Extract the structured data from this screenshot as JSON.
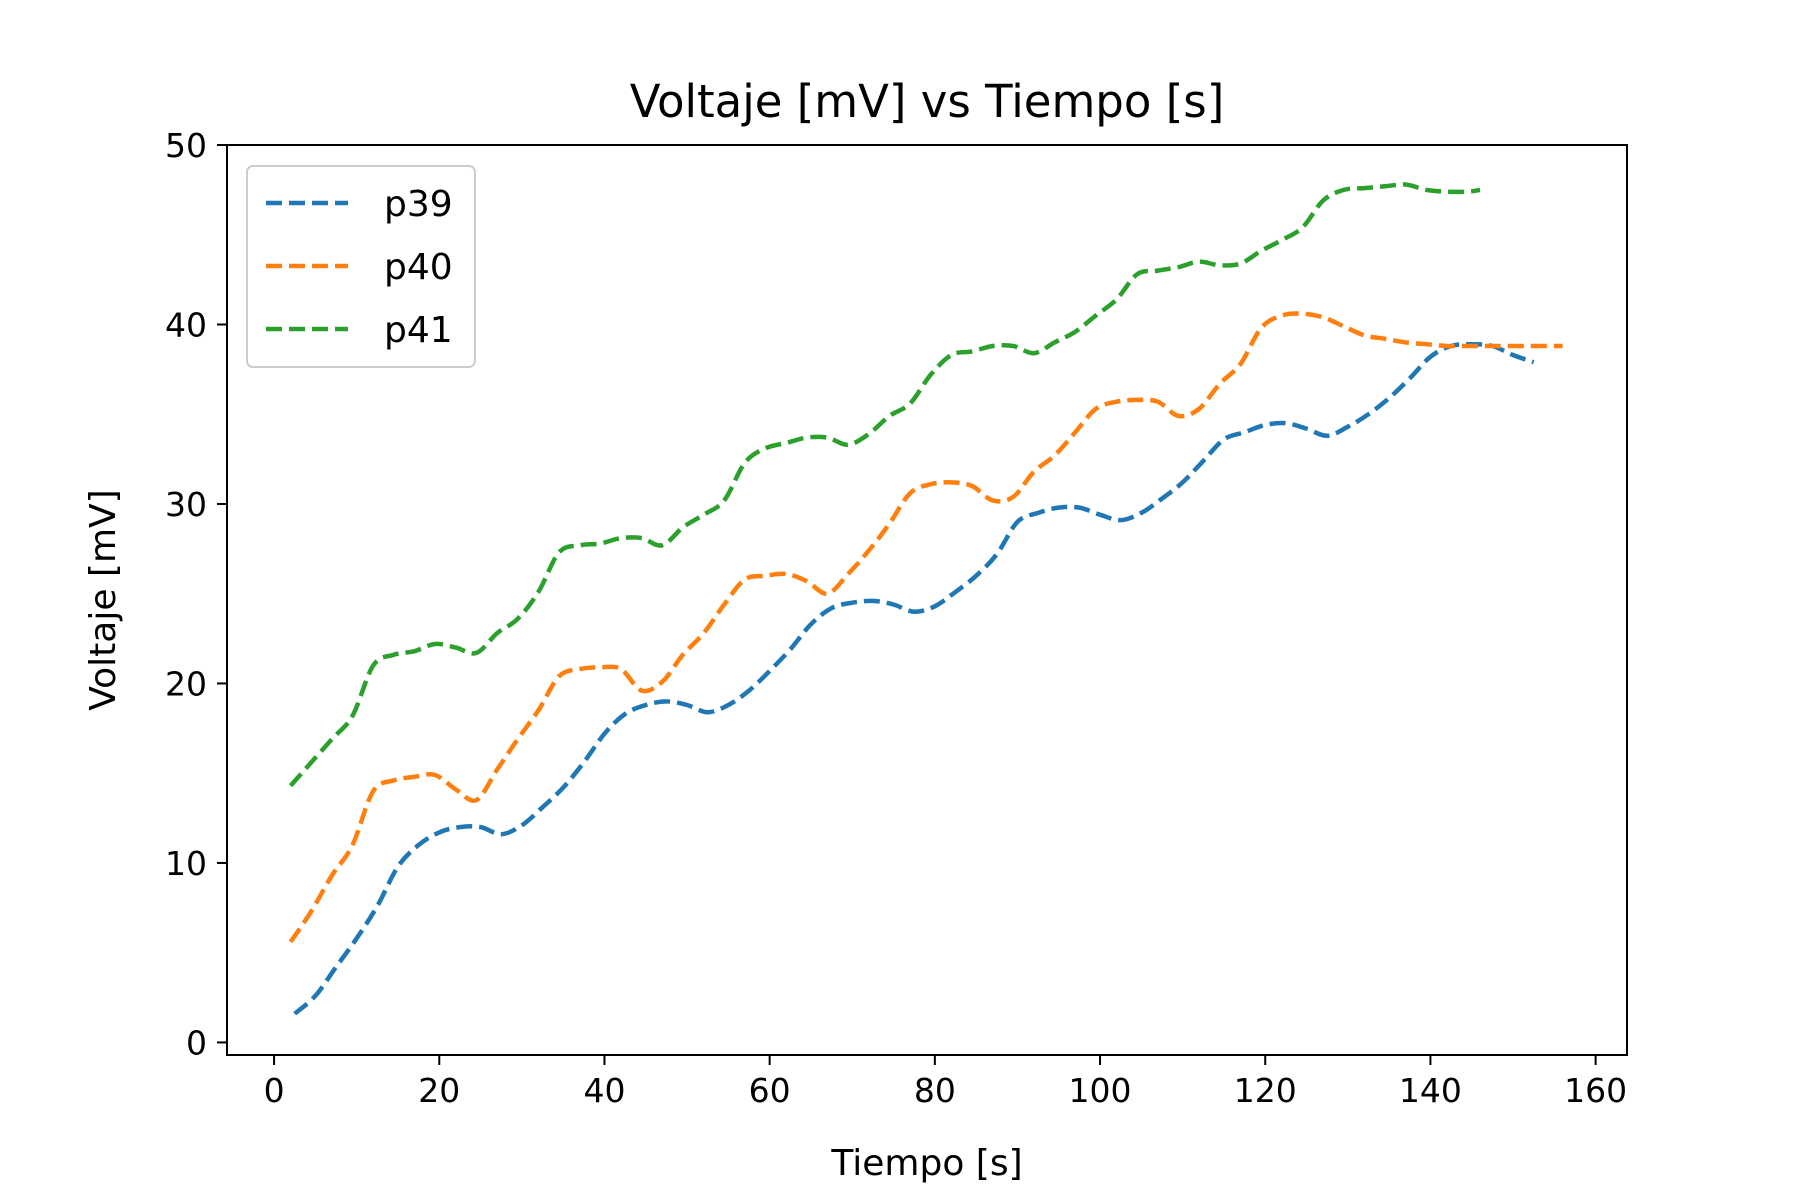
{
  "chart_data": {
    "type": "line",
    "title": "Voltaje [mV] vs Tiempo [s]",
    "xlabel": "Tiempo [s]",
    "ylabel": "Voltaje [mV]",
    "xlim": [
      -5.7,
      163.8
    ],
    "ylim": [
      -0.7,
      50.0
    ],
    "xticks": [
      0,
      20,
      40,
      60,
      80,
      100,
      120,
      140,
      160
    ],
    "yticks": [
      0,
      10,
      20,
      30,
      40,
      50
    ],
    "grid": false,
    "legend_position": "top-left",
    "line_style": "dashed",
    "series": [
      {
        "name": "p39",
        "color": "#1f77b4",
        "x": [
          2.5,
          5,
          7.5,
          10,
          12.5,
          15,
          17.5,
          20,
          22.5,
          25,
          27.5,
          30,
          32.5,
          35,
          37.5,
          40,
          42.5,
          45,
          47.5,
          50,
          52.5,
          55,
          57.5,
          60,
          62.5,
          65,
          67.5,
          70,
          72.5,
          75,
          77.5,
          80,
          82.5,
          85,
          87.5,
          90,
          92.5,
          95,
          97.5,
          100,
          102.5,
          105,
          107.5,
          110,
          112.5,
          115,
          117.5,
          120,
          122.5,
          125,
          127.5,
          130,
          132.5,
          135,
          137.5,
          140,
          142.5,
          145,
          147.5,
          150,
          152.5
        ],
        "y": [
          1.6,
          2.6,
          4.2,
          5.8,
          7.6,
          9.8,
          11.0,
          11.7,
          12.0,
          12.0,
          11.6,
          12.1,
          13.1,
          14.2,
          15.6,
          17.2,
          18.3,
          18.8,
          19.0,
          18.8,
          18.4,
          18.8,
          19.6,
          20.7,
          21.9,
          23.3,
          24.2,
          24.5,
          24.6,
          24.4,
          24.0,
          24.3,
          25.1,
          26.0,
          27.2,
          29.0,
          29.5,
          29.8,
          29.8,
          29.4,
          29.1,
          29.5,
          30.3,
          31.2,
          32.4,
          33.6,
          34.0,
          34.4,
          34.5,
          34.2,
          33.8,
          34.3,
          35.0,
          35.9,
          37.0,
          38.2,
          38.8,
          38.9,
          38.8,
          38.3,
          37.9
        ]
      },
      {
        "name": "p40",
        "color": "#ff7f0e",
        "x": [
          2,
          4.5,
          7,
          9.5,
          12,
          14.5,
          17,
          19.5,
          22,
          24.5,
          27,
          29.5,
          32,
          34.5,
          37,
          39.5,
          42,
          44.5,
          47,
          49.5,
          52,
          54.5,
          57,
          59.5,
          62,
          64.5,
          67,
          69.5,
          72,
          74.5,
          77,
          79.5,
          82,
          84.5,
          87,
          89.5,
          92,
          94.5,
          97,
          99.5,
          102,
          104.5,
          107,
          109.5,
          112,
          114.5,
          117,
          119.5,
          122,
          124.5,
          127,
          129.5,
          132,
          134.5,
          137,
          139.5,
          142,
          144.5,
          147,
          149.5,
          152,
          154.5,
          156
        ],
        "y": [
          5.6,
          7.3,
          9.3,
          11.0,
          14.0,
          14.6,
          14.8,
          14.9,
          14.1,
          13.5,
          15.2,
          16.9,
          18.5,
          20.4,
          20.8,
          20.9,
          20.8,
          19.6,
          20.1,
          21.6,
          22.8,
          24.4,
          25.8,
          26.0,
          26.1,
          25.7,
          25.0,
          26.1,
          27.4,
          28.9,
          30.6,
          31.1,
          31.2,
          31.0,
          30.2,
          30.4,
          31.8,
          32.7,
          34.0,
          35.3,
          35.7,
          35.8,
          35.7,
          34.9,
          35.3,
          36.7,
          37.8,
          39.8,
          40.5,
          40.6,
          40.4,
          39.9,
          39.4,
          39.2,
          39.0,
          38.9,
          38.8,
          38.8,
          38.8,
          38.8,
          38.8,
          38.8,
          38.8
        ]
      },
      {
        "name": "p41",
        "color": "#2ca02c",
        "x": [
          2,
          4.5,
          7,
          9.5,
          12,
          14.5,
          17,
          19.5,
          22,
          24.5,
          27,
          29.5,
          32,
          34.5,
          37,
          39.5,
          42,
          44.5,
          47,
          49.5,
          52,
          54.5,
          57,
          59.5,
          62,
          64.5,
          67,
          69.5,
          72,
          74.5,
          77,
          79.5,
          82,
          84.5,
          87,
          89.5,
          92,
          94.5,
          97,
          99.5,
          102,
          104.5,
          107,
          109.5,
          112,
          114.5,
          117,
          119.5,
          122,
          124.5,
          127,
          129.5,
          132,
          134.5,
          137,
          139.5,
          142,
          144.5,
          146
        ],
        "y": [
          14.3,
          15.6,
          16.9,
          18.2,
          21.0,
          21.6,
          21.8,
          22.2,
          22.0,
          21.7,
          22.8,
          23.6,
          25.1,
          27.3,
          27.7,
          27.8,
          28.1,
          28.1,
          27.7,
          28.7,
          29.4,
          30.2,
          32.3,
          33.1,
          33.4,
          33.7,
          33.7,
          33.3,
          33.9,
          34.9,
          35.6,
          37.2,
          38.3,
          38.5,
          38.8,
          38.8,
          38.4,
          39.0,
          39.6,
          40.5,
          41.4,
          42.8,
          43.0,
          43.2,
          43.5,
          43.3,
          43.4,
          44.1,
          44.7,
          45.4,
          46.9,
          47.5,
          47.6,
          47.7,
          47.8,
          47.5,
          47.4,
          47.4,
          47.5
        ]
      }
    ]
  }
}
